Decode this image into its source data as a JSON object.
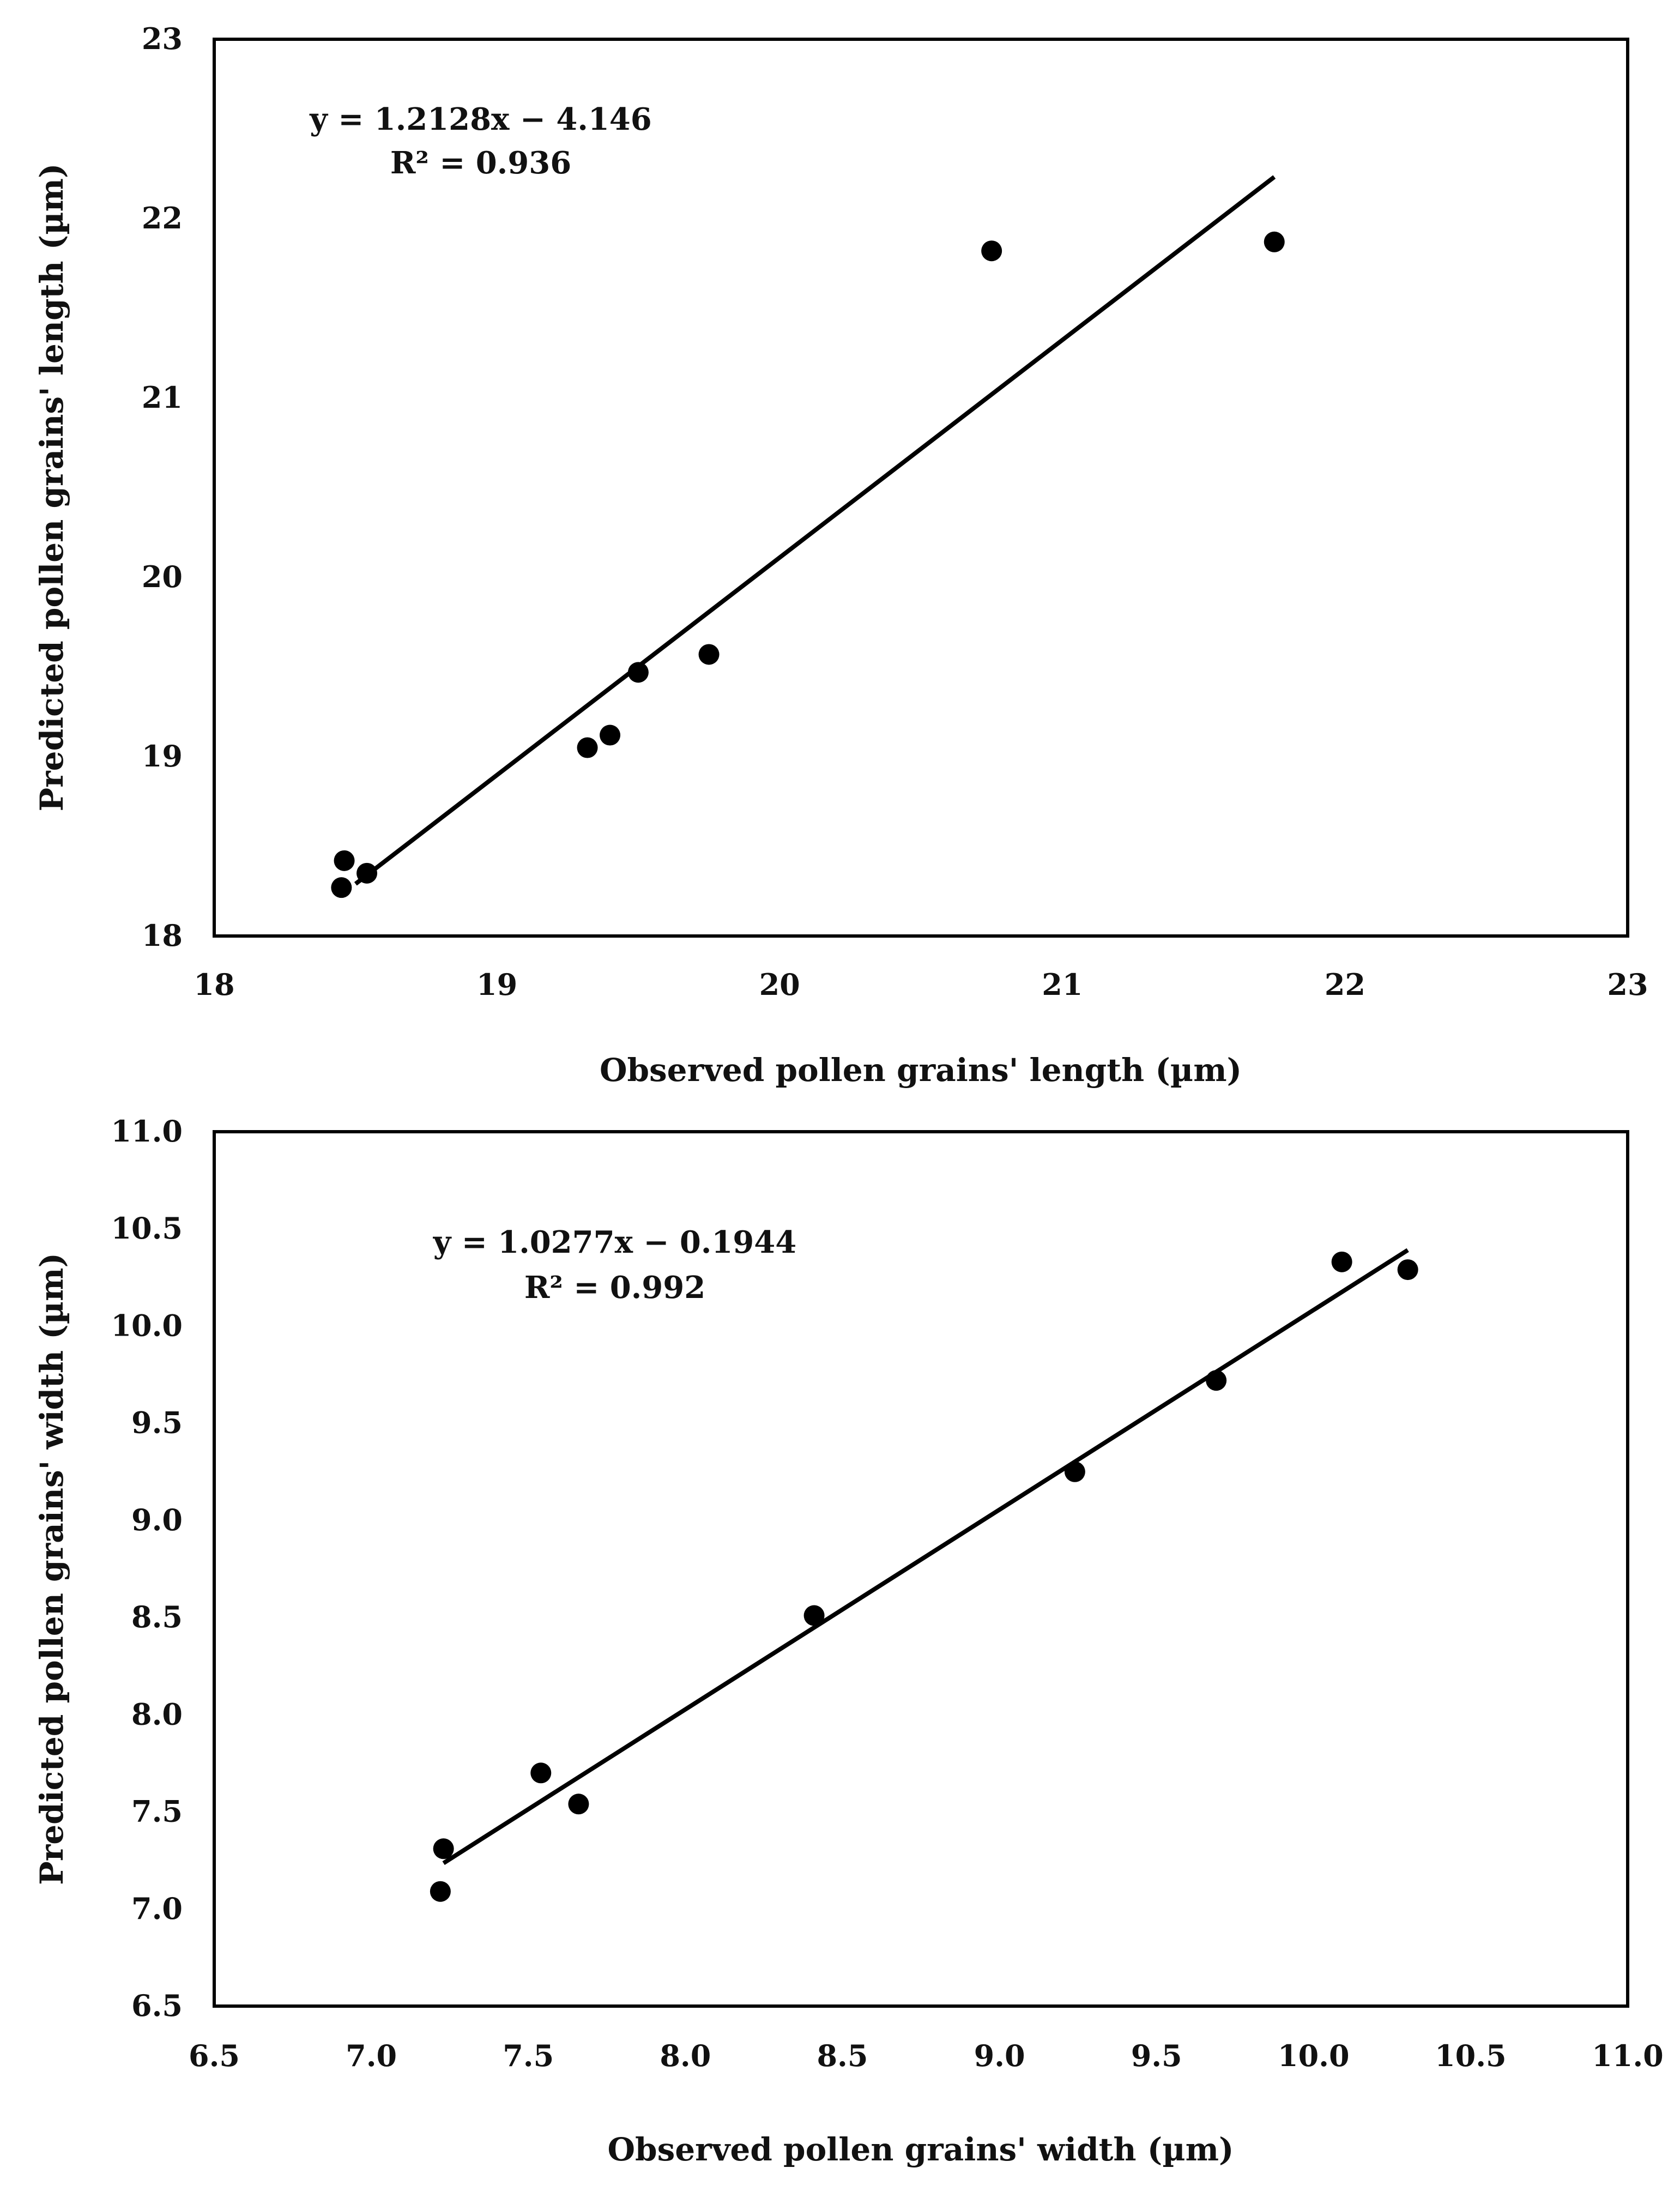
{
  "chart_data": [
    {
      "type": "scatter",
      "title": "",
      "xlabel": "Observed pollen grains' length (µm)",
      "ylabel": "Predicted  pollen grains' length (µm)",
      "xlim": [
        18,
        23
      ],
      "ylim": [
        18,
        23
      ],
      "xticks": [
        "18",
        "19",
        "20",
        "21",
        "22",
        "23"
      ],
      "yticks": [
        "18",
        "19",
        "20",
        "21",
        "22",
        "23"
      ],
      "points": [
        {
          "x": 18.45,
          "y": 18.27
        },
        {
          "x": 18.46,
          "y": 18.42
        },
        {
          "x": 18.54,
          "y": 18.35
        },
        {
          "x": 19.32,
          "y": 19.05
        },
        {
          "x": 19.4,
          "y": 19.12
        },
        {
          "x": 19.5,
          "y": 19.47
        },
        {
          "x": 19.75,
          "y": 19.57
        },
        {
          "x": 20.75,
          "y": 21.82
        },
        {
          "x": 21.75,
          "y": 21.87
        }
      ],
      "trendline": {
        "slope": 1.2128,
        "intercept": -4.146,
        "x_start": 18.5,
        "x_end": 21.75
      },
      "annotations": {
        "equation": "y = 1.2128x − 4.146",
        "r_squared": "R² = 0.936"
      },
      "grid": false,
      "legend": "none"
    },
    {
      "type": "scatter",
      "title": "",
      "xlabel": "Observed pollen grains' width (µm)",
      "ylabel": "Predicted  pollen grains' width (µm)",
      "xlim": [
        6.5,
        11.0
      ],
      "ylim": [
        6.5,
        11.0
      ],
      "xticks": [
        "6.5",
        "7.0",
        "7.5",
        "8.0",
        "8.5",
        "9.0",
        "9.5",
        "10.0",
        "10.5",
        "11.0"
      ],
      "yticks": [
        "6.5",
        "7.0",
        "7.5",
        "8.0",
        "8.5",
        "9.0",
        "9.5",
        "10.0",
        "10.5",
        "11.0"
      ],
      "points": [
        {
          "x": 7.22,
          "y": 7.09
        },
        {
          "x": 7.23,
          "y": 7.31
        },
        {
          "x": 7.54,
          "y": 7.7
        },
        {
          "x": 7.66,
          "y": 7.54
        },
        {
          "x": 8.41,
          "y": 8.51
        },
        {
          "x": 9.24,
          "y": 9.25
        },
        {
          "x": 9.69,
          "y": 9.72
        },
        {
          "x": 10.09,
          "y": 10.33
        },
        {
          "x": 10.3,
          "y": 10.29
        }
      ],
      "trendline": {
        "slope": 1.0277,
        "intercept": -0.1944,
        "x_start": 7.23,
        "x_end": 10.3
      },
      "annotations": {
        "equation": "y = 1.0277x − 0.1944",
        "r_squared": "R² = 0.992"
      },
      "grid": false,
      "legend": "none"
    }
  ]
}
